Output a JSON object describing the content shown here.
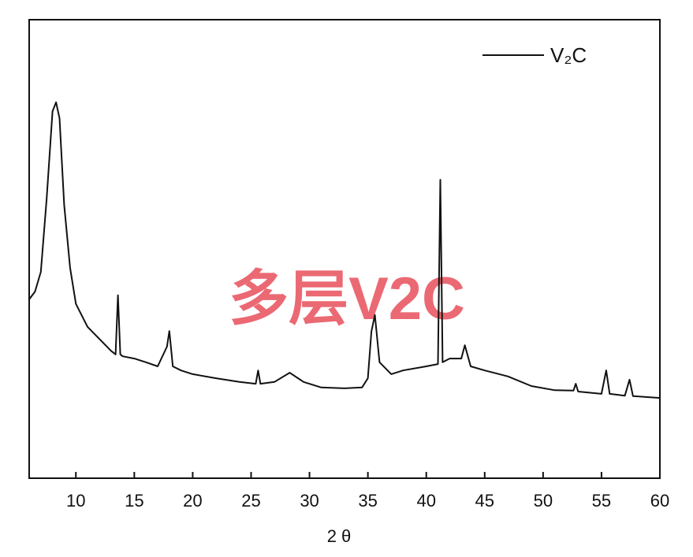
{
  "chart_data": {
    "type": "line",
    "xlabel": "2 θ",
    "annotation": "多层V2C",
    "x": [
      6,
      6.5,
      7,
      7.5,
      8,
      8.3,
      8.6,
      9,
      9.5,
      10,
      11,
      12,
      13,
      13.4,
      13.6,
      13.8,
      14,
      15,
      16,
      17,
      17.8,
      18,
      18.3,
      19,
      20,
      22,
      24,
      25.4,
      25.6,
      25.8,
      27,
      28.3,
      29.5,
      31,
      33,
      34.5,
      35,
      35.3,
      35.6,
      36,
      37,
      38,
      40,
      41,
      41.2,
      41.4,
      42,
      43,
      43.3,
      43.8,
      45,
      47,
      49,
      51,
      52.6,
      52.8,
      53,
      55,
      55.4,
      55.7,
      57,
      57.4,
      57.7,
      60
    ],
    "series": [
      {
        "name": "V₂C",
        "color": "#111111",
        "values": [
          39,
          40.7,
          45,
          61,
          80,
          82,
          78.5,
          59.6,
          45.9,
          38,
          33,
          30.4,
          27.8,
          27,
          39.9,
          27,
          26.6,
          26.1,
          25.3,
          24.4,
          28.7,
          32.1,
          24.4,
          23.5,
          22.7,
          21.8,
          21,
          20.6,
          23.5,
          20.6,
          21,
          23,
          21,
          19.8,
          19.6,
          19.8,
          21.8,
          32,
          35.6,
          25.3,
          22.7,
          23.5,
          24.4,
          24.9,
          65.1,
          25.3,
          26.1,
          26.1,
          29,
          24.4,
          23.5,
          22.2,
          20.1,
          19.2,
          19.1,
          20.6,
          18.9,
          18.4,
          23.5,
          18.4,
          18,
          21.5,
          17.9,
          17.5
        ]
      }
    ],
    "xlim": [
      6,
      60
    ],
    "xticks": [
      10,
      15,
      20,
      25,
      30,
      35,
      40,
      45,
      50,
      55,
      60
    ],
    "ylim": [
      0,
      100
    ],
    "legend": "upper-right"
  }
}
